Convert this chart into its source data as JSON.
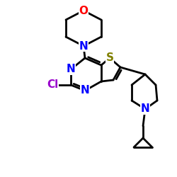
{
  "bg_color": "#ffffff",
  "atom_colors": {
    "N": "#0000ff",
    "O": "#ff0000",
    "S": "#808000",
    "Cl": "#9900cc",
    "C": "#000000"
  },
  "bond_color": "#000000",
  "bond_width": 2.0,
  "font_size_atom": 11,
  "fig_size": [
    2.5,
    2.5
  ],
  "dpi": 100
}
